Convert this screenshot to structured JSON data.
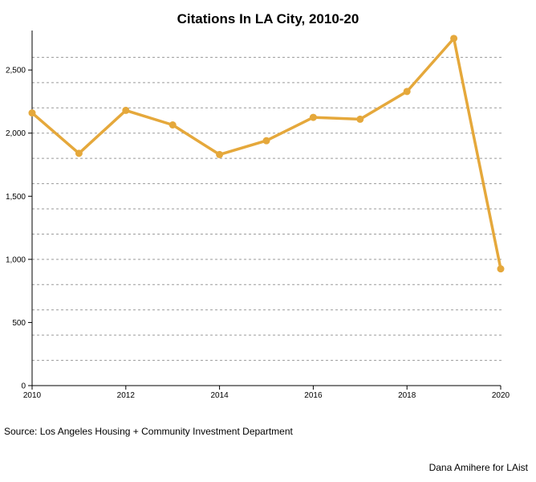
{
  "chart_data": {
    "type": "line",
    "title": "Citations In LA City, 2010-20",
    "xlabel": "",
    "ylabel": "",
    "x": [
      2010,
      2011,
      2012,
      2013,
      2014,
      2015,
      2016,
      2017,
      2018,
      2019,
      2020
    ],
    "series": [
      {
        "values": [
          2160,
          1840,
          2180,
          2065,
          1830,
          1940,
          2125,
          2110,
          2330,
          2750,
          925
        ]
      }
    ],
    "x_ticks": [
      2010,
      2012,
      2014,
      2016,
      2018,
      2020
    ],
    "y_ticks": [
      0,
      500,
      1000,
      1500,
      2000,
      2500
    ],
    "y_tick_labels": [
      "0",
      "500",
      "1,000",
      "1,500",
      "2,000",
      "2,500"
    ],
    "xlim": [
      2010,
      2020
    ],
    "ylim": [
      0,
      2800
    ],
    "gridlines": [
      200,
      400,
      600,
      800,
      1000,
      1200,
      1400,
      1600,
      1800,
      2000,
      2200,
      2400,
      2600
    ],
    "grid": "horizontal dashed",
    "legend": "none",
    "line_color": "#e5a83b"
  },
  "source": "Source: Los Angeles Housing + Community Investment Department",
  "credit": "Dana Amihere for LAist"
}
